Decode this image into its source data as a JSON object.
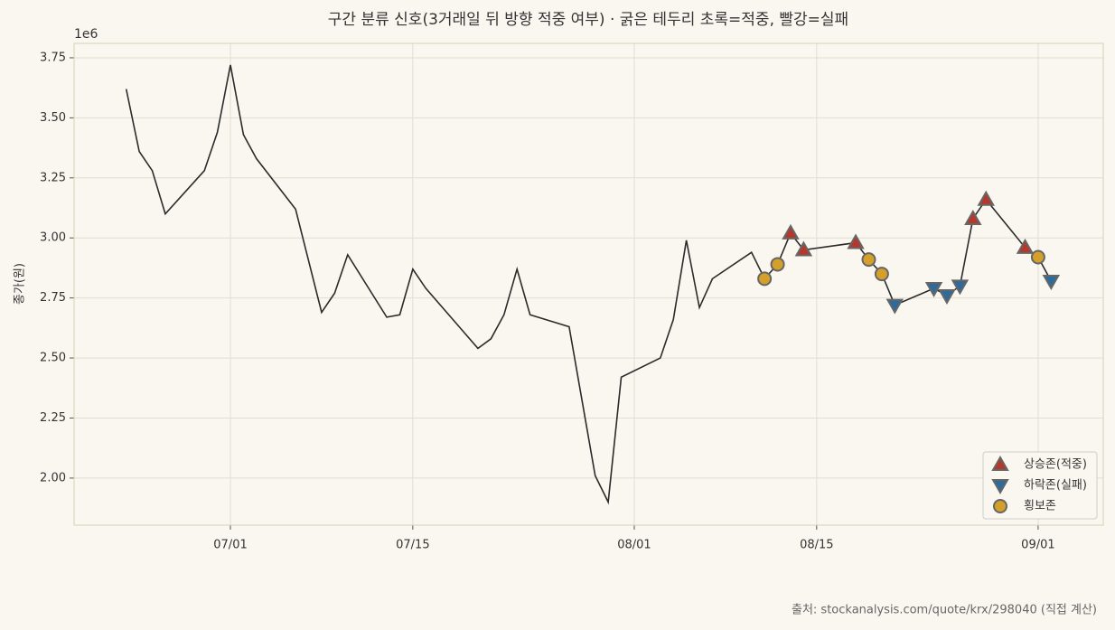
{
  "chart_data": {
    "type": "line",
    "title": "구간 분류 신호(3거래일 뒤 방향 적중 여부) · 굵은 테두리 초록=적중, 빨강=실패",
    "y_label": "종가(원)",
    "y_offset_label": "1e6",
    "source": "출처: stockanalysis.com/quote/krx/298040 (직접 계산)",
    "color": "#2b2b2b",
    "grid": true,
    "legend": "lower right",
    "x": [
      "06/23",
      "06/24",
      "06/25",
      "06/26",
      "06/29",
      "06/30",
      "07/01",
      "07/02",
      "07/03",
      "07/06",
      "07/08",
      "07/09",
      "07/10",
      "07/13",
      "07/14",
      "07/15",
      "07/16",
      "07/20",
      "07/21",
      "07/22",
      "07/23",
      "07/24",
      "07/27",
      "07/29",
      "07/30",
      "07/31",
      "08/03",
      "08/04",
      "08/05",
      "08/06",
      "08/07",
      "08/10",
      "08/11",
      "08/12",
      "08/13",
      "08/14",
      "08/18",
      "08/19",
      "08/20",
      "08/21",
      "08/24",
      "08/25",
      "08/26",
      "08/27",
      "08/28",
      "08/31",
      "09/01",
      "09/02"
    ],
    "values": [
      3.62,
      3.36,
      3.28,
      3.1,
      3.28,
      3.44,
      3.72,
      3.43,
      3.33,
      3.12,
      2.69,
      2.77,
      2.93,
      2.67,
      2.68,
      2.87,
      2.79,
      2.54,
      2.58,
      2.68,
      2.87,
      2.68,
      2.63,
      2.01,
      1.9,
      2.42,
      2.5,
      2.66,
      2.99,
      2.71,
      2.83,
      2.94,
      2.83,
      2.89,
      3.02,
      2.95,
      2.98,
      2.91,
      2.85,
      2.72,
      2.79,
      2.76,
      2.8,
      3.08,
      3.16,
      2.96,
      2.92,
      2.82
    ],
    "series": [
      {
        "name": "상승존(적중)",
        "color": "#b5382c",
        "marker": "triangle-up",
        "values": [
          null,
          null,
          null,
          null,
          null,
          null,
          null,
          null,
          null,
          null,
          null,
          null,
          null,
          null,
          null,
          null,
          null,
          null,
          null,
          null,
          null,
          null,
          null,
          null,
          null,
          null,
          null,
          null,
          null,
          null,
          null,
          null,
          null,
          null,
          3.02,
          2.95,
          2.98,
          null,
          null,
          null,
          null,
          null,
          null,
          3.08,
          3.16,
          2.96,
          null,
          null
        ]
      },
      {
        "name": "하락존(실패)",
        "color": "#2f6b9a",
        "marker": "triangle-down",
        "values": [
          null,
          null,
          null,
          null,
          null,
          null,
          null,
          null,
          null,
          null,
          null,
          null,
          null,
          null,
          null,
          null,
          null,
          null,
          null,
          null,
          null,
          null,
          null,
          null,
          null,
          null,
          null,
          null,
          null,
          null,
          null,
          null,
          null,
          null,
          null,
          null,
          null,
          null,
          null,
          2.72,
          2.79,
          2.76,
          2.8,
          null,
          null,
          null,
          null,
          2.82
        ]
      },
      {
        "name": "횡보존",
        "color": "#d4a02a",
        "marker": "circle",
        "values": [
          null,
          null,
          null,
          null,
          null,
          null,
          null,
          null,
          null,
          null,
          null,
          null,
          null,
          null,
          null,
          null,
          null,
          null,
          null,
          null,
          null,
          null,
          null,
          null,
          null,
          null,
          null,
          null,
          null,
          null,
          null,
          null,
          2.83,
          2.89,
          null,
          null,
          null,
          2.91,
          2.85,
          null,
          null,
          null,
          null,
          null,
          null,
          null,
          2.92,
          null
        ]
      }
    ],
    "xlim": [
      "06/19",
      "09/06"
    ],
    "xticks": [
      "07/01",
      "07/15",
      "08/01",
      "08/15",
      "09/01"
    ],
    "ylim": [
      1.804,
      3.81
    ],
    "yticks": [
      {
        "value": 2,
        "label": "2.00"
      },
      {
        "value": 2.25,
        "label": "2.25"
      },
      {
        "value": 2.5,
        "label": "2.50"
      },
      {
        "value": 2.75,
        "label": "2.75"
      },
      {
        "value": 3,
        "label": "3.00"
      },
      {
        "value": 3.25,
        "label": "3.25"
      },
      {
        "value": 3.5,
        "label": "3.50"
      },
      {
        "value": 3.75,
        "label": "3.75"
      }
    ]
  }
}
